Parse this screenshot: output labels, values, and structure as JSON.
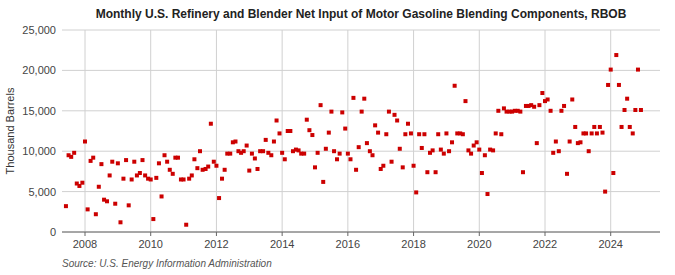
{
  "chart_data": {
    "type": "scatter",
    "title": "Monthly U.S. Refinery and Blender Net Input of Motor Gasoline Blending Components, RBOB",
    "ylabel": "Thousand Barrels",
    "annotation": "Source: U.S. Energy Information Administration",
    "color": "#cc0000",
    "marker": "square",
    "grid": true,
    "xlim": [
      2007.3,
      2025.5
    ],
    "ylim": [
      0,
      25000
    ],
    "xticks": [
      2008,
      2010,
      2012,
      2014,
      2016,
      2018,
      2020,
      2022,
      2024
    ],
    "yticks": [
      0,
      {
        "value": 5000,
        "label": "5,000"
      },
      {
        "value": 10000,
        "label": "10,000"
      },
      {
        "value": 15000,
        "label": "15,000"
      },
      {
        "value": 20000,
        "label": "20,000"
      },
      {
        "value": 25000,
        "label": "25,000"
      }
    ],
    "x": [
      2007.42,
      2007.5,
      2007.58,
      2007.67,
      2007.75,
      2007.83,
      2007.92,
      2008,
      2008.08,
      2008.17,
      2008.25,
      2008.33,
      2008.42,
      2008.5,
      2008.58,
      2008.67,
      2008.75,
      2008.83,
      2008.92,
      2009,
      2009.08,
      2009.17,
      2009.25,
      2009.33,
      2009.42,
      2009.5,
      2009.58,
      2009.67,
      2009.75,
      2009.83,
      2009.92,
      2010,
      2010.08,
      2010.17,
      2010.25,
      2010.33,
      2010.42,
      2010.5,
      2010.58,
      2010.67,
      2010.75,
      2010.83,
      2010.92,
      2011,
      2011.08,
      2011.17,
      2011.25,
      2011.33,
      2011.42,
      2011.5,
      2011.58,
      2011.67,
      2011.75,
      2011.83,
      2011.92,
      2012,
      2012.08,
      2012.17,
      2012.25,
      2012.33,
      2012.42,
      2012.5,
      2012.58,
      2012.67,
      2012.75,
      2012.83,
      2012.92,
      2013,
      2013.08,
      2013.17,
      2013.25,
      2013.33,
      2013.42,
      2013.5,
      2013.58,
      2013.67,
      2013.75,
      2013.83,
      2013.92,
      2014,
      2014.08,
      2014.17,
      2014.25,
      2014.33,
      2014.42,
      2014.5,
      2014.58,
      2014.67,
      2014.75,
      2014.83,
      2014.92,
      2015,
      2015.08,
      2015.17,
      2015.25,
      2015.33,
      2015.42,
      2015.5,
      2015.58,
      2015.67,
      2015.75,
      2015.83,
      2015.92,
      2016,
      2016.08,
      2016.17,
      2016.25,
      2016.33,
      2016.42,
      2016.5,
      2016.58,
      2016.67,
      2016.75,
      2016.83,
      2016.92,
      2017,
      2017.08,
      2017.17,
      2017.25,
      2017.33,
      2017.42,
      2017.5,
      2017.58,
      2017.67,
      2017.75,
      2017.83,
      2017.92,
      2018,
      2018.08,
      2018.17,
      2018.25,
      2018.33,
      2018.42,
      2018.5,
      2018.58,
      2018.67,
      2018.75,
      2018.83,
      2018.92,
      2019,
      2019.08,
      2019.17,
      2019.25,
      2019.33,
      2019.42,
      2019.5,
      2019.58,
      2019.67,
      2019.75,
      2019.83,
      2019.92,
      2020,
      2020.08,
      2020.17,
      2020.25,
      2020.33,
      2020.42,
      2020.5,
      2020.58,
      2020.67,
      2020.75,
      2020.83,
      2020.92,
      2021,
      2021.08,
      2021.17,
      2021.25,
      2021.33,
      2021.42,
      2021.5,
      2021.58,
      2021.67,
      2021.75,
      2021.83,
      2021.92,
      2022,
      2022.08,
      2022.17,
      2022.25,
      2022.33,
      2022.42,
      2022.5,
      2022.58,
      2022.67,
      2022.75,
      2022.83,
      2022.92,
      2023,
      2023.08,
      2023.17,
      2023.25,
      2023.33,
      2023.42,
      2023.5,
      2023.58,
      2023.67,
      2023.75,
      2023.83,
      2023.92,
      2024,
      2024.08,
      2024.17,
      2024.25,
      2024.33,
      2024.42,
      2024.5,
      2024.58,
      2024.67,
      2024.75,
      2024.83,
      2024.92
    ],
    "values": [
      3200,
      9500,
      9300,
      9800,
      6000,
      5700,
      6100,
      11200,
      2800,
      8800,
      9200,
      2200,
      5600,
      8400,
      4000,
      3800,
      7000,
      8700,
      3500,
      8500,
      1200,
      6600,
      8900,
      3300,
      6500,
      8700,
      7000,
      7300,
      8900,
      7000,
      6600,
      6500,
      1600,
      6700,
      8500,
      4400,
      9500,
      8700,
      7700,
      7200,
      9200,
      9200,
      6500,
      6500,
      900,
      6600,
      7000,
      9000,
      7900,
      10000,
      7700,
      7800,
      8100,
      13400,
      8700,
      8200,
      4200,
      6600,
      7700,
      9700,
      9700,
      11100,
      11200,
      10000,
      9800,
      10000,
      10700,
      7600,
      9700,
      9100,
      7800,
      10000,
      10000,
      11400,
      9800,
      9500,
      11200,
      13800,
      12200,
      9800,
      9000,
      12500,
      12500,
      10000,
      10200,
      10100,
      9700,
      9700,
      13900,
      12600,
      12000,
      8000,
      9800,
      15700,
      6200,
      10300,
      12300,
      14900,
      10000,
      9000,
      9700,
      14800,
      12800,
      9700,
      9000,
      16600,
      7700,
      10500,
      14900,
      16500,
      11000,
      10000,
      9500,
      13200,
      12300,
      7800,
      8200,
      12100,
      14900,
      8700,
      14500,
      13800,
      10300,
      8000,
      12100,
      13400,
      12200,
      8200,
      4900,
      12100,
      10400,
      12100,
      7400,
      9800,
      10100,
      7400,
      12100,
      10200,
      9700,
      12200,
      10000,
      11100,
      18100,
      12200,
      12200,
      12100,
      16200,
      10100,
      9700,
      10700,
      11100,
      10200,
      7300,
      9500,
      4700,
      10200,
      10100,
      12200,
      15000,
      12100,
      15300,
      14900,
      14900,
      14900,
      15000,
      15000,
      14900,
      7400,
      15600,
      15600,
      15700,
      15500,
      11000,
      15700,
      17200,
      16200,
      16400,
      15000,
      9800,
      11200,
      10000,
      15000,
      15600,
      7200,
      11200,
      16400,
      13000,
      11000,
      11100,
      12200,
      12200,
      10000,
      12200,
      13000,
      12200,
      13000,
      12300,
      5000,
      18200,
      20100,
      7300,
      21900,
      18200,
      13000,
      15100,
      16500,
      13000,
      12200,
      15100,
      20100,
      15100
    ]
  }
}
